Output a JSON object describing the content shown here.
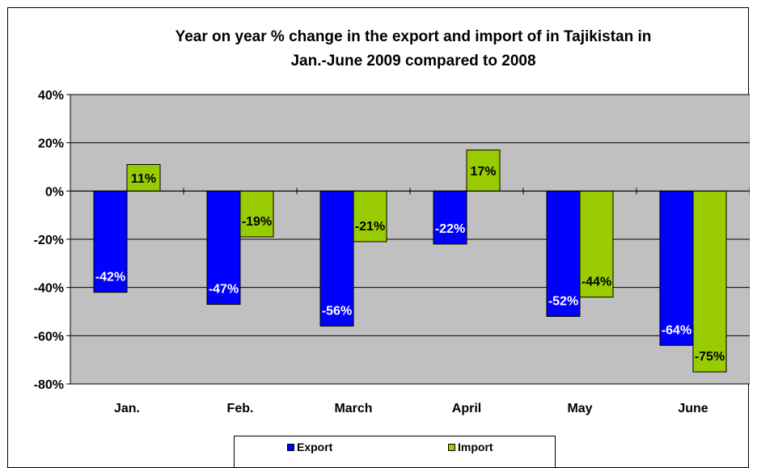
{
  "chart_data": {
    "type": "bar",
    "title": "Year on year % change in the export and import  of in Tajikistan in Jan.-June 2009 compared to 2008",
    "title_lines": [
      "Year on year % change in the export and import  of in Tajikistan in",
      "Jan.-June 2009 compared to 2008"
    ],
    "categories": [
      "Jan.",
      "Feb.",
      "March",
      "April",
      "May",
      "June"
    ],
    "series": [
      {
        "name": "Export",
        "color": "#0000ff",
        "values": [
          -42,
          -47,
          -56,
          -22,
          -52,
          -64
        ],
        "labels": [
          "-42%",
          "-47%",
          "-56%",
          "-22%",
          "-52%",
          "-64%"
        ]
      },
      {
        "name": "Import",
        "color": "#99cc00",
        "values": [
          11,
          -19,
          -21,
          17,
          -44,
          -75
        ],
        "labels": [
          "11%",
          "-19%",
          "-21%",
          "17%",
          "-44%",
          "-75%"
        ]
      }
    ],
    "ylim": [
      -80,
      40
    ],
    "yticks": [
      40,
      20,
      0,
      -20,
      -40,
      -60,
      -80
    ],
    "ytick_labels": [
      "40%",
      "20%",
      "0%",
      "-20%",
      "-40%",
      "-60%",
      "-80%"
    ],
    "plot_background": "#c0c0c0",
    "grid": true,
    "legend": "bottom",
    "xlabel": "",
    "ylabel": ""
  }
}
